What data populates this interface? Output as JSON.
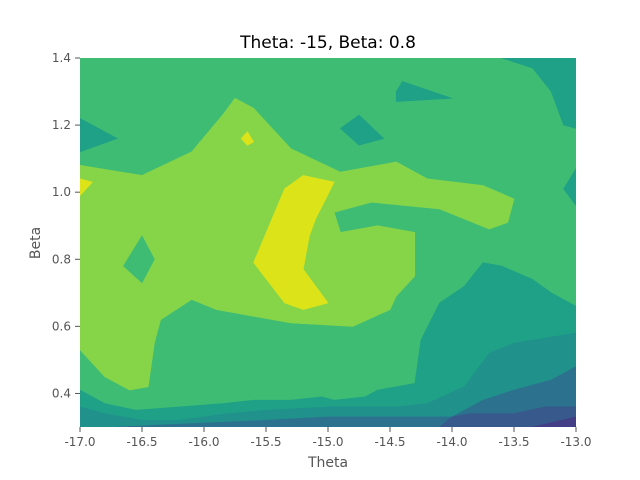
{
  "chart_data": {
    "type": "contour",
    "title": "Theta: -15, Beta: 0.8",
    "xlabel": "Theta",
    "ylabel": "Beta",
    "xlim": [
      -17.0,
      -13.0
    ],
    "ylim": [
      0.3,
      1.4
    ],
    "x_ticks": [
      "-17.0",
      "-16.5",
      "-16.0",
      "-15.5",
      "-15.0",
      "-14.5",
      "-14.0",
      "-13.5",
      "-13.0"
    ],
    "y_ticks": [
      "0.4",
      "0.6",
      "0.8",
      "1.0",
      "1.2",
      "1.4"
    ],
    "grid": false,
    "colormap": "viridis",
    "level_colors": [
      "#433E85",
      "#38598C",
      "#2C728E",
      "#21918C",
      "#1FA187",
      "#3FBC73",
      "#86D549",
      "#DCE319"
    ],
    "regions": [
      {
        "level": 5,
        "polygon": [
          [
            -17.0,
            0.3
          ],
          [
            -13.0,
            0.3
          ],
          [
            -13.0,
            1.4
          ],
          [
            -17.0,
            1.4
          ]
        ]
      },
      {
        "level": 6,
        "polygon": [
          [
            -17.0,
            0.53
          ],
          [
            -16.8,
            0.45
          ],
          [
            -16.6,
            0.41
          ],
          [
            -16.45,
            0.42
          ],
          [
            -16.4,
            0.55
          ],
          [
            -16.35,
            0.62
          ],
          [
            -16.1,
            0.68
          ],
          [
            -15.9,
            0.65
          ],
          [
            -15.3,
            0.61
          ],
          [
            -14.8,
            0.6
          ],
          [
            -14.5,
            0.65
          ],
          [
            -14.45,
            0.69
          ],
          [
            -14.3,
            0.75
          ],
          [
            -14.3,
            0.88
          ],
          [
            -14.6,
            0.9
          ],
          [
            -14.9,
            0.88
          ],
          [
            -14.95,
            0.94
          ],
          [
            -14.65,
            0.97
          ],
          [
            -14.1,
            0.95
          ],
          [
            -13.7,
            0.89
          ],
          [
            -13.55,
            0.91
          ],
          [
            -13.5,
            0.98
          ],
          [
            -13.75,
            1.02
          ],
          [
            -14.2,
            1.04
          ],
          [
            -14.45,
            1.09
          ],
          [
            -14.9,
            1.06
          ],
          [
            -15.3,
            1.13
          ],
          [
            -15.6,
            1.25
          ],
          [
            -15.75,
            1.28
          ],
          [
            -15.85,
            1.23
          ],
          [
            -16.1,
            1.12
          ],
          [
            -16.5,
            1.05
          ],
          [
            -17.0,
            1.08
          ]
        ]
      },
      {
        "level": 7,
        "polygon": [
          [
            -15.6,
            0.79
          ],
          [
            -15.35,
            1.01
          ],
          [
            -15.2,
            1.05
          ],
          [
            -14.95,
            1.03
          ],
          [
            -15.1,
            0.92
          ],
          [
            -15.15,
            0.87
          ],
          [
            -15.2,
            0.77
          ],
          [
            -15.0,
            0.67
          ],
          [
            -15.2,
            0.65
          ],
          [
            -15.35,
            0.67
          ]
        ]
      },
      {
        "level": 7,
        "polygon": [
          [
            -17.0,
            1.04
          ],
          [
            -16.9,
            1.03
          ],
          [
            -17.0,
            0.99
          ]
        ]
      },
      {
        "level": 7,
        "polygon": [
          [
            -15.7,
            1.16
          ],
          [
            -15.65,
            1.18
          ],
          [
            -15.6,
            1.15
          ],
          [
            -15.65,
            1.14
          ]
        ]
      },
      {
        "level": 5,
        "polygon": [
          [
            -16.65,
            0.78
          ],
          [
            -16.5,
            0.87
          ],
          [
            -16.4,
            0.8
          ],
          [
            -16.5,
            0.73
          ]
        ]
      },
      {
        "level": 5,
        "polygon": [
          [
            -15.4,
            1.4
          ],
          [
            -15.0,
            1.4
          ],
          [
            -15.15,
            1.33
          ],
          [
            -15.2,
            1.33
          ]
        ]
      },
      {
        "level": 4,
        "polygon": [
          [
            -17.0,
            1.22
          ],
          [
            -16.7,
            1.16
          ],
          [
            -17.0,
            1.12
          ]
        ]
      },
      {
        "level": 4,
        "polygon": [
          [
            -14.9,
            1.19
          ],
          [
            -14.75,
            1.23
          ],
          [
            -14.55,
            1.16
          ],
          [
            -14.75,
            1.14
          ]
        ]
      },
      {
        "level": 4,
        "polygon": [
          [
            -14.45,
            1.3
          ],
          [
            -14.4,
            1.33
          ],
          [
            -14.0,
            1.28
          ],
          [
            -14.45,
            1.27
          ]
        ]
      },
      {
        "level": 4,
        "polygon": [
          [
            -13.6,
            1.4
          ],
          [
            -13.35,
            1.37
          ],
          [
            -13.2,
            1.3
          ],
          [
            -13.1,
            1.2
          ],
          [
            -13.0,
            1.19
          ],
          [
            -13.0,
            1.4
          ]
        ]
      },
      {
        "level": 4,
        "polygon": [
          [
            -13.0,
            1.07
          ],
          [
            -13.1,
            1.01
          ],
          [
            -13.0,
            0.96
          ]
        ]
      },
      {
        "level": 4,
        "polygon": [
          [
            -17.0,
            0.3
          ],
          [
            -13.0,
            0.3
          ],
          [
            -13.0,
            0.66
          ],
          [
            -13.2,
            0.7
          ],
          [
            -13.35,
            0.74
          ],
          [
            -13.6,
            0.78
          ],
          [
            -13.75,
            0.79
          ],
          [
            -13.9,
            0.72
          ],
          [
            -14.1,
            0.67
          ],
          [
            -14.25,
            0.56
          ],
          [
            -14.3,
            0.43
          ],
          [
            -14.6,
            0.41
          ],
          [
            -14.7,
            0.39
          ],
          [
            -14.95,
            0.38
          ],
          [
            -15.05,
            0.39
          ],
          [
            -15.3,
            0.38
          ],
          [
            -15.6,
            0.38
          ],
          [
            -15.85,
            0.37
          ],
          [
            -16.2,
            0.36
          ],
          [
            -16.55,
            0.35
          ],
          [
            -16.8,
            0.37
          ],
          [
            -17.0,
            0.41
          ]
        ]
      },
      {
        "level": 3,
        "polygon": [
          [
            -17.0,
            0.3
          ],
          [
            -13.0,
            0.3
          ],
          [
            -13.0,
            0.58
          ],
          [
            -13.5,
            0.55
          ],
          [
            -13.7,
            0.52
          ],
          [
            -13.9,
            0.42
          ],
          [
            -14.2,
            0.37
          ],
          [
            -14.45,
            0.36
          ],
          [
            -15.0,
            0.36
          ],
          [
            -15.5,
            0.35
          ],
          [
            -15.8,
            0.34
          ],
          [
            -16.2,
            0.32
          ],
          [
            -16.5,
            0.32
          ],
          [
            -16.8,
            0.34
          ],
          [
            -17.0,
            0.36
          ]
        ]
      },
      {
        "level": 2,
        "polygon": [
          [
            -16.7,
            0.3
          ],
          [
            -13.0,
            0.3
          ],
          [
            -13.0,
            0.48
          ],
          [
            -13.2,
            0.44
          ],
          [
            -13.5,
            0.41
          ],
          [
            -13.75,
            0.38
          ],
          [
            -14.0,
            0.33
          ],
          [
            -14.5,
            0.33
          ],
          [
            -15.0,
            0.33
          ],
          [
            -15.5,
            0.32
          ],
          [
            -16.1,
            0.31
          ]
        ]
      },
      {
        "level": 1,
        "polygon": [
          [
            -14.1,
            0.3
          ],
          [
            -13.0,
            0.3
          ],
          [
            -13.0,
            0.36
          ],
          [
            -13.25,
            0.36
          ],
          [
            -13.5,
            0.34
          ],
          [
            -13.85,
            0.34
          ],
          [
            -14.0,
            0.33
          ]
        ]
      },
      {
        "level": 0,
        "polygon": [
          [
            -13.35,
            0.3
          ],
          [
            -13.0,
            0.3
          ],
          [
            -13.0,
            0.33
          ]
        ]
      }
    ]
  }
}
